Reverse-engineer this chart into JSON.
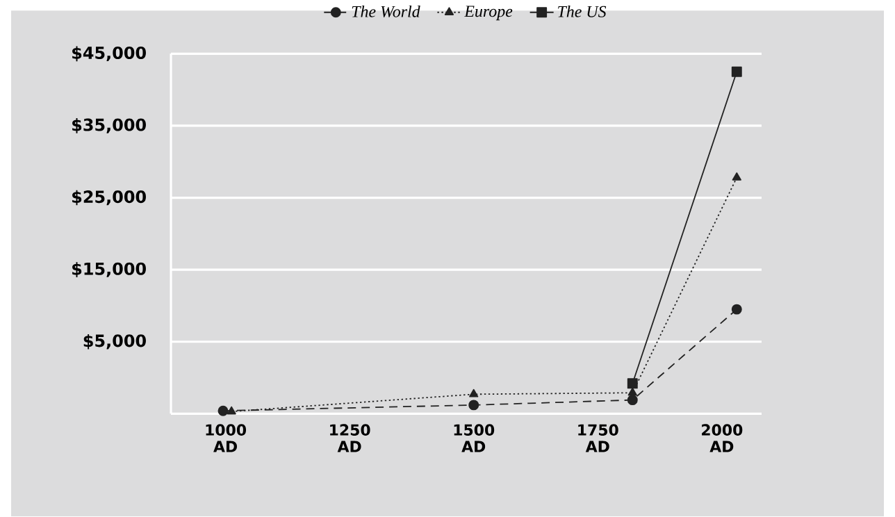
{
  "chart_data": {
    "type": "line",
    "xlim": [
      890,
      2080
    ],
    "ylim": [
      -5000,
      45000
    ],
    "xticks": [
      {
        "value": 1000,
        "label": "1000 AD"
      },
      {
        "value": 1250,
        "label": "1250 AD"
      },
      {
        "value": 1500,
        "label": "1500 AD"
      },
      {
        "value": 1750,
        "label": "1750 AD"
      },
      {
        "value": 2000,
        "label": "2000 AD"
      }
    ],
    "yticks": [
      {
        "value": 5000,
        "label": "$5,000"
      },
      {
        "value": 15000,
        "label": "$15,000"
      },
      {
        "value": 25000,
        "label": "$25,000"
      },
      {
        "value": 35000,
        "label": "$35,000"
      },
      {
        "value": 45000,
        "label": "$45,000"
      }
    ],
    "grid": "y",
    "legend": "top",
    "series": [
      {
        "name": "The World",
        "color": "#222222",
        "marker": "circle",
        "line_style": "dashed",
        "x": [
          995,
          1500,
          1820,
          2030
        ],
        "values": [
          -4600,
          -3800,
          -3100,
          9500
        ]
      },
      {
        "name": "Europe",
        "color": "#222222",
        "marker": "triangle",
        "line_style": "dotted",
        "x": [
          1012,
          1500,
          1820,
          2030
        ],
        "values": [
          -4700,
          -2300,
          -2100,
          27800
        ]
      },
      {
        "name": "The US",
        "color": "#222222",
        "marker": "square",
        "line_style": "solid",
        "x": [
          1820,
          2030
        ],
        "values": [
          -800,
          42500
        ]
      }
    ]
  }
}
